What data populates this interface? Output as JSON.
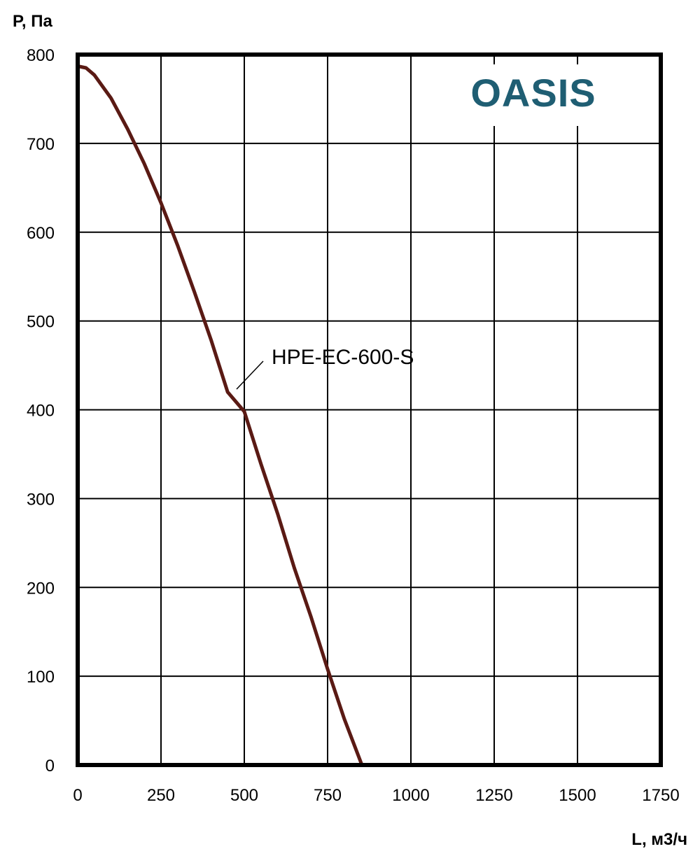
{
  "chart_data": {
    "type": "line",
    "ylabel": "P, Па",
    "xlabel": "L, м3/ч",
    "xlim": [
      0,
      1750
    ],
    "ylim": [
      0,
      800
    ],
    "x_ticks": [
      "0",
      "250",
      "500",
      "750",
      "1000",
      "1250",
      "1500",
      "1750"
    ],
    "y_ticks": [
      "0",
      "100",
      "200",
      "300",
      "400",
      "500",
      "600",
      "700",
      "800"
    ],
    "grid": true,
    "brand": "OASIS",
    "series": [
      {
        "name": "HPE-EC-600-S",
        "color": "#5a1a14",
        "x": [
          0,
          25,
          50,
          100,
          150,
          200,
          250,
          300,
          350,
          400,
          450,
          500,
          550,
          600,
          650,
          700,
          750,
          800,
          853
        ],
        "y": [
          787,
          785,
          777,
          751,
          716,
          677,
          633,
          585,
          533,
          479,
          420,
          398,
          339,
          283,
          222,
          167,
          108,
          52,
          0
        ]
      }
    ],
    "colors": {
      "grid": "#000000",
      "frame": "#000000",
      "brand": "#1f5e73"
    }
  }
}
